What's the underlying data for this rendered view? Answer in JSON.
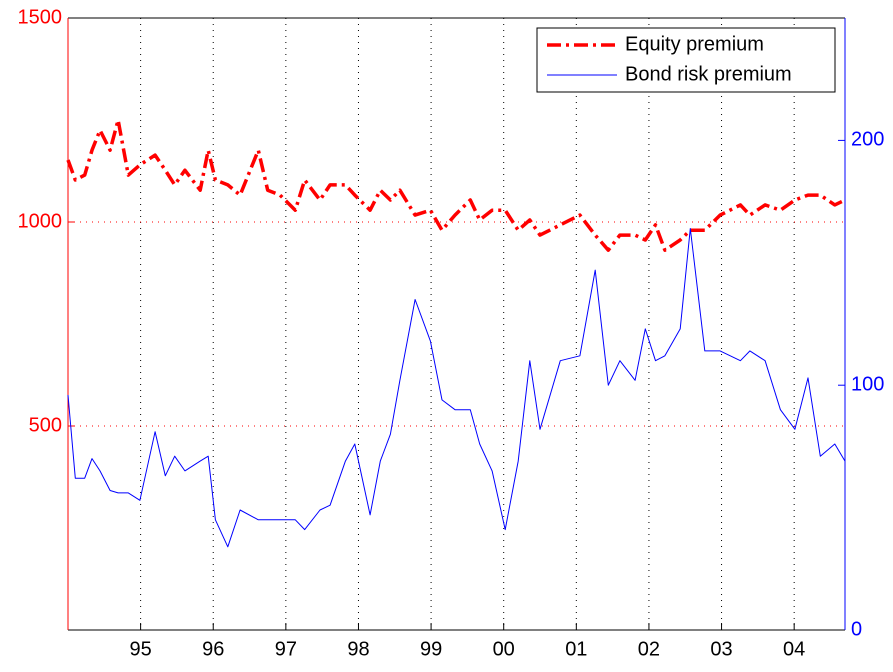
{
  "chart_data": {
    "type": "line",
    "x": [
      1994.0,
      1994.1,
      1994.23,
      1994.33,
      1994.44,
      1994.58,
      1994.69,
      1994.83,
      1994.99,
      1995.2,
      1995.34,
      1995.47,
      1995.61,
      1995.82,
      1995.93,
      1996.03,
      1996.2,
      1996.37,
      1996.62,
      1996.75,
      1996.92,
      1997.13,
      1997.26,
      1997.47,
      1997.61,
      1997.82,
      1997.95,
      1998.16,
      1998.3,
      1998.44,
      1998.57,
      1998.78,
      1998.99,
      1999.15,
      1999.33,
      1999.54,
      1999.67,
      1999.84,
      2000.02,
      2000.2,
      2000.36,
      2000.5,
      2000.78,
      2001.05,
      2001.26,
      2001.44,
      2001.6,
      2001.81,
      2001.95,
      2002.09,
      2002.22,
      2002.43,
      2002.57,
      2002.77,
      2002.98,
      2003.26,
      2003.39,
      2003.6,
      2003.81,
      2004.01,
      2004.19,
      2004.36,
      2004.56,
      2004.7
    ],
    "series": [
      {
        "name": "Equity premium",
        "color": "#ff0000",
        "axis": "y",
        "values": [
          1152,
          1103,
          1115,
          1176,
          1225,
          1176,
          1250,
          1115,
          1140,
          1164,
          1127,
          1091,
          1127,
          1078,
          1176,
          1103,
          1091,
          1066,
          1176,
          1078,
          1066,
          1029,
          1103,
          1054,
          1091,
          1091,
          1066,
          1029,
          1078,
          1054,
          1078,
          1017,
          1029,
          980,
          1017,
          1054,
          1005,
          1029,
          1029,
          980,
          1005,
          968,
          993,
          1017,
          968,
          931,
          968,
          968,
          956,
          993,
          931,
          956,
          980,
          980,
          1017,
          1042,
          1017,
          1042,
          1029,
          1054,
          1066,
          1066,
          1042,
          1054
        ]
      },
      {
        "name": "Bond risk premium",
        "color": "#0000ff",
        "axis": "y2",
        "values": [
          96,
          62,
          62,
          70,
          65,
          57,
          56,
          56,
          53,
          81,
          63,
          71,
          65,
          69,
          71,
          45,
          34,
          49,
          45,
          45,
          45,
          45,
          41,
          49,
          51,
          69,
          76,
          47,
          69,
          80,
          102,
          135,
          118,
          94,
          90,
          90,
          76,
          65,
          41,
          69,
          110,
          82,
          110,
          112,
          147,
          100,
          110,
          102,
          123,
          110,
          112,
          123,
          164,
          114,
          114,
          110,
          114,
          110,
          90,
          82,
          103,
          71,
          76,
          69
        ]
      }
    ],
    "xlim": [
      1994,
      2004.7
    ],
    "xticks": [
      {
        "value": 1995,
        "label": "95"
      },
      {
        "value": 1996,
        "label": "96"
      },
      {
        "value": 1997,
        "label": "97"
      },
      {
        "value": 1998,
        "label": "98"
      },
      {
        "value": 1999,
        "label": "99"
      },
      {
        "value": 2000,
        "label": "00"
      },
      {
        "value": 2001,
        "label": "01"
      },
      {
        "value": 2002,
        "label": "02"
      },
      {
        "value": 2003,
        "label": "03"
      },
      {
        "value": 2004,
        "label": "04"
      }
    ],
    "ylim": [
      0,
      1500
    ],
    "yticks": [
      500,
      1000,
      1500
    ],
    "y2lim": [
      0,
      250
    ],
    "y2ticks": [
      0,
      100,
      200
    ],
    "grid": true,
    "legend": "upper right"
  }
}
